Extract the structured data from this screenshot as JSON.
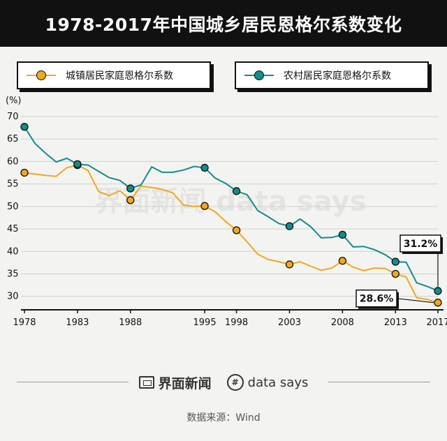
{
  "title": "1978-2017年中国城乡居民恩格尔系数变化",
  "source": "数据来源：Wind",
  "logos": {
    "brand": "界面新闻",
    "partner": "data says",
    "partner_mark": "#"
  },
  "colors": {
    "urban": "#f0a91e",
    "rural": "#138c8c",
    "title_bg": "#111111"
  },
  "chart_data": {
    "type": "line",
    "title": "1978-2017年中国城乡居民恩格尔系数变化",
    "ylabel": "(%)",
    "ylim": [
      27,
      70
    ],
    "yticks": [
      30,
      35,
      40,
      45,
      50,
      55,
      60,
      65,
      70
    ],
    "xlim": [
      1978,
      2017
    ],
    "xticks": [
      1978,
      1983,
      1988,
      1995,
      1998,
      2003,
      2008,
      2013,
      2017
    ],
    "x": [
      1978,
      1979,
      1980,
      1981,
      1982,
      1983,
      1984,
      1985,
      1986,
      1987,
      1988,
      1989,
      1990,
      1991,
      1992,
      1993,
      1994,
      1995,
      1996,
      1997,
      1998,
      1999,
      2000,
      2001,
      2002,
      2003,
      2004,
      2005,
      2006,
      2007,
      2008,
      2009,
      2010,
      2011,
      2012,
      2013,
      2014,
      2015,
      2016,
      2017
    ],
    "series": [
      {
        "name": "城镇居民家庭恩格尔系数",
        "key": "urban",
        "values": [
          57.5,
          57.2,
          56.9,
          56.7,
          58.6,
          59.2,
          58.0,
          53.3,
          52.4,
          53.5,
          51.4,
          54.5,
          54.2,
          53.8,
          53.0,
          50.3,
          50.0,
          50.1,
          48.8,
          46.6,
          44.7,
          42.1,
          39.4,
          38.2,
          37.7,
          37.1,
          37.7,
          36.7,
          35.8,
          36.3,
          37.9,
          36.5,
          35.7,
          36.3,
          36.2,
          35.0,
          34.3,
          29.7,
          29.3,
          28.6
        ],
        "markers": [
          1978,
          1983,
          1988,
          1995,
          1998,
          2003,
          2008,
          2013,
          2017
        ]
      },
      {
        "name": "农村居民家庭恩格尔系数",
        "key": "rural",
        "values": [
          67.7,
          64.0,
          61.8,
          59.9,
          60.7,
          59.4,
          59.2,
          57.8,
          56.4,
          55.8,
          54.0,
          54.8,
          58.8,
          57.6,
          57.6,
          58.1,
          58.9,
          58.6,
          56.3,
          55.1,
          53.4,
          52.6,
          49.1,
          47.7,
          46.2,
          45.6,
          47.2,
          45.5,
          43.0,
          43.1,
          43.7,
          41.0,
          41.1,
          40.4,
          39.3,
          37.7,
          37.6,
          33.0,
          32.2,
          31.2
        ],
        "markers": [
          1978,
          1983,
          1988,
          1995,
          1998,
          2003,
          2008,
          2013,
          2017
        ]
      }
    ],
    "annotations": [
      {
        "series": "rural",
        "year": 2017,
        "text": "31.2%"
      },
      {
        "series": "urban",
        "year": 2017,
        "text": "28.6%"
      }
    ],
    "watermark": "界面新闻 data says"
  }
}
